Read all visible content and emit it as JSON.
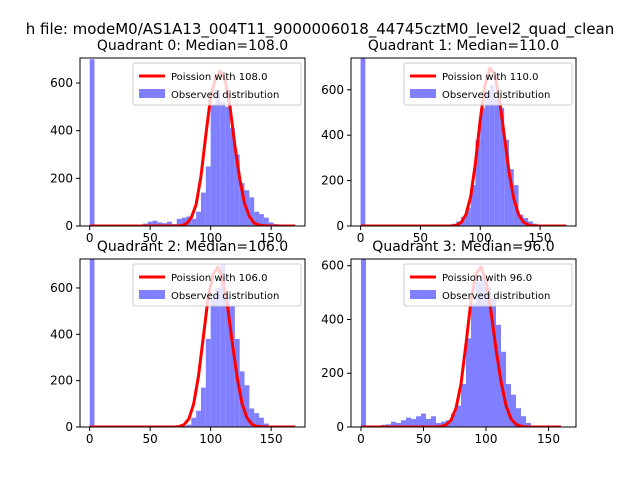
{
  "suptitle": "h file: modeM0/AS1A13_004T11_9000006018_44745cztM0_level2_quad_clean",
  "colors": {
    "hist": "#7f7fff",
    "line": "#ff0000"
  },
  "chart_data": [
    {
      "type": "bar",
      "title": "Quadrant 0: Median=108.0",
      "xlim": [
        -8,
        178
      ],
      "ylim": [
        0,
        705
      ],
      "xticks": [
        0,
        50,
        100,
        150
      ],
      "yticks": [
        0,
        200,
        400,
        600
      ],
      "bin_width": 4,
      "series": [
        {
          "name": "Observed distribution",
          "x": [
            0,
            44,
            48,
            52,
            56,
            60,
            64,
            68,
            72,
            76,
            80,
            84,
            88,
            92,
            96,
            100,
            104,
            108,
            112,
            116,
            120,
            124,
            128,
            132,
            136,
            140,
            144,
            148,
            152,
            156
          ],
          "values": [
            700,
            10,
            18,
            22,
            15,
            12,
            18,
            8,
            30,
            35,
            40,
            30,
            60,
            140,
            250,
            510,
            570,
            520,
            500,
            410,
            300,
            180,
            150,
            120,
            60,
            50,
            35,
            15,
            8,
            5
          ]
        },
        {
          "name": "Poission with 108.0",
          "x": [
            0,
            72,
            76,
            80,
            84,
            88,
            92,
            96,
            100,
            104,
            108,
            112,
            116,
            120,
            124,
            128,
            132,
            136,
            140,
            144,
            148,
            170
          ],
          "values": [
            0,
            0,
            2,
            10,
            35,
            90,
            210,
            380,
            540,
            620,
            650,
            610,
            500,
            340,
            200,
            95,
            40,
            12,
            4,
            1,
            0,
            0
          ]
        }
      ],
      "legend": "top-right"
    },
    {
      "type": "bar",
      "title": "Quadrant 1: Median=110.0",
      "xlim": [
        -8,
        180
      ],
      "ylim": [
        0,
        740
      ],
      "xticks": [
        0,
        50,
        100,
        150
      ],
      "yticks": [
        0,
        200,
        400,
        600
      ],
      "bin_width": 4,
      "series": [
        {
          "name": "Observed distribution",
          "x": [
            0,
            72,
            76,
            80,
            84,
            88,
            92,
            96,
            100,
            104,
            108,
            112,
            116,
            120,
            124,
            128,
            132,
            136,
            140,
            144
          ],
          "values": [
            740,
            5,
            10,
            20,
            40,
            80,
            180,
            380,
            520,
            590,
            620,
            560,
            520,
            380,
            250,
            180,
            50,
            35,
            20,
            10
          ]
        },
        {
          "name": "Poission with 110.0",
          "x": [
            0,
            76,
            80,
            84,
            88,
            92,
            96,
            100,
            104,
            108,
            112,
            116,
            120,
            124,
            128,
            132,
            136,
            140,
            144,
            148,
            172
          ],
          "values": [
            0,
            0,
            3,
            15,
            50,
            130,
            280,
            470,
            620,
            695,
            670,
            560,
            400,
            240,
            120,
            50,
            18,
            5,
            1,
            0,
            0
          ]
        }
      ],
      "legend": "top-right"
    },
    {
      "type": "bar",
      "title": "Quadrant 2: Median=106.0",
      "xlim": [
        -8,
        178
      ],
      "ylim": [
        0,
        725
      ],
      "xticks": [
        0,
        50,
        100,
        150
      ],
      "yticks": [
        0,
        200,
        400,
        600
      ],
      "bin_width": 4,
      "series": [
        {
          "name": "Observed distribution",
          "x": [
            0,
            76,
            80,
            84,
            88,
            92,
            96,
            100,
            104,
            108,
            112,
            116,
            120,
            124,
            128,
            132,
            136,
            140,
            144
          ],
          "values": [
            725,
            5,
            10,
            40,
            70,
            170,
            380,
            560,
            600,
            700,
            560,
            520,
            380,
            240,
            180,
            80,
            60,
            40,
            15
          ]
        },
        {
          "name": "Poission with 106.0",
          "x": [
            0,
            70,
            74,
            78,
            82,
            86,
            90,
            94,
            98,
            102,
            106,
            110,
            114,
            118,
            122,
            126,
            130,
            134,
            138,
            142,
            146,
            170
          ],
          "values": [
            0,
            0,
            2,
            10,
            35,
            100,
            220,
            390,
            560,
            660,
            690,
            640,
            520,
            360,
            210,
            100,
            40,
            12,
            3,
            1,
            0,
            0
          ]
        }
      ],
      "legend": "top-right"
    },
    {
      "type": "bar",
      "title": "Quadrant 3: Median=96.0",
      "xlim": [
        -8,
        172
      ],
      "ylim": [
        0,
        625
      ],
      "xticks": [
        0,
        50,
        100,
        150
      ],
      "yticks": [
        0,
        200,
        400,
        600
      ],
      "bin_width": 4,
      "series": [
        {
          "name": "Observed distribution",
          "x": [
            0,
            4,
            12,
            16,
            20,
            24,
            28,
            32,
            36,
            40,
            44,
            48,
            52,
            56,
            60,
            64,
            68,
            72,
            76,
            80,
            84,
            88,
            92,
            96,
            100,
            104,
            108,
            112,
            116,
            120,
            124,
            128,
            132
          ],
          "values": [
            625,
            5,
            5,
            8,
            10,
            20,
            15,
            25,
            35,
            30,
            40,
            50,
            30,
            40,
            15,
            20,
            25,
            50,
            80,
            160,
            330,
            460,
            540,
            560,
            520,
            480,
            380,
            280,
            160,
            120,
            70,
            40,
            15
          ]
        },
        {
          "name": "Poission with 96.0",
          "x": [
            0,
            60,
            64,
            68,
            72,
            76,
            80,
            84,
            88,
            92,
            96,
            100,
            104,
            108,
            112,
            116,
            120,
            124,
            128,
            132,
            136,
            160
          ],
          "values": [
            0,
            0,
            2,
            8,
            25,
            70,
            160,
            310,
            470,
            570,
            595,
            545,
            430,
            290,
            170,
            80,
            30,
            10,
            3,
            0,
            0,
            0
          ]
        }
      ],
      "legend": "top-right"
    }
  ]
}
